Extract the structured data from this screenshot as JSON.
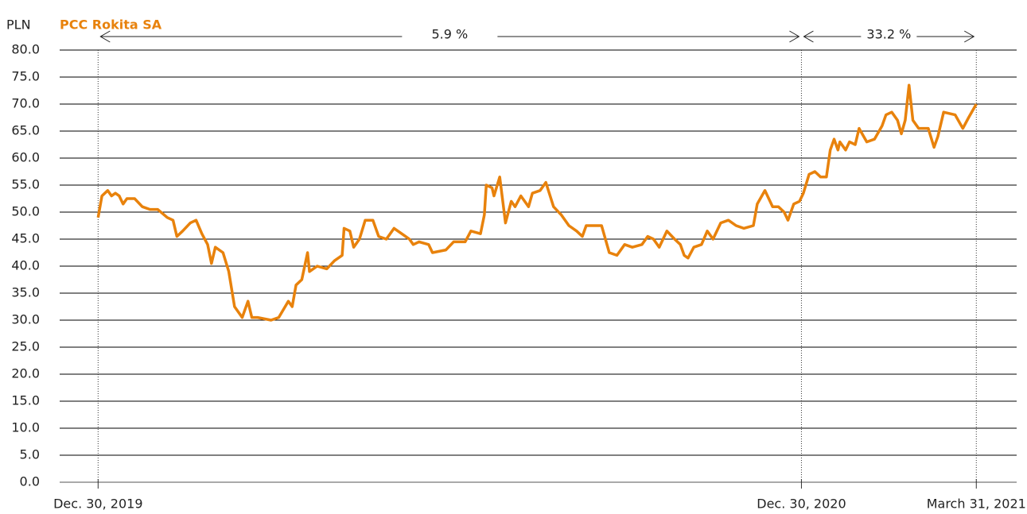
{
  "chart_data": {
    "type": "line",
    "title": "PCC Rokita SA",
    "y_label": "PLN",
    "annotations": [
      "5.9 %",
      "33.2 %"
    ],
    "xlim": [
      -20,
      478
    ],
    "xticks": [
      {
        "value": 0,
        "label": "Dec. 30, 2019"
      },
      {
        "value": 366,
        "label": "Dec. 30, 2020"
      },
      {
        "value": 457,
        "label": "March 31, 2021"
      }
    ],
    "ylim": [
      0,
      80
    ],
    "yticks": [
      {
        "value": 0,
        "label": "0.0"
      },
      {
        "value": 5,
        "label": "5.0"
      },
      {
        "value": 10,
        "label": "10.0"
      },
      {
        "value": 15,
        "label": "15.0"
      },
      {
        "value": 20,
        "label": "20.0"
      },
      {
        "value": 25,
        "label": "25.0"
      },
      {
        "value": 30,
        "label": "30.0"
      },
      {
        "value": 35,
        "label": "35.0"
      },
      {
        "value": 40,
        "label": "40.0"
      },
      {
        "value": 45,
        "label": "45.0"
      },
      {
        "value": 50,
        "label": "50.0"
      },
      {
        "value": 55,
        "label": "55.0"
      },
      {
        "value": 60,
        "label": "60.0"
      },
      {
        "value": 65,
        "label": "65.0"
      },
      {
        "value": 70,
        "label": "70.0"
      },
      {
        "value": 75,
        "label": "75.0"
      },
      {
        "value": 80,
        "label": "80.0"
      }
    ],
    "grid": true,
    "x": [
      0,
      2,
      5,
      7,
      9,
      11,
      13,
      15,
      19,
      23,
      27,
      31,
      36,
      39,
      41,
      44,
      48,
      51,
      54,
      57,
      59,
      61,
      65,
      68,
      71,
      75,
      78,
      80,
      83,
      90,
      94,
      99,
      101,
      103,
      106,
      109,
      110,
      114,
      119,
      123,
      127,
      128,
      131,
      133,
      136,
      139,
      143,
      146,
      150,
      154,
      158,
      162,
      164,
      167,
      172,
      174,
      181,
      185,
      191,
      194,
      199,
      201,
      202,
      205,
      206,
      209,
      212,
      215,
      217,
      220,
      224,
      226,
      230,
      233,
      237,
      241,
      245,
      249,
      252,
      254,
      262,
      264,
      266,
      270,
      274,
      278,
      283,
      286,
      289,
      292,
      296,
      300,
      303,
      305,
      307,
      310,
      314,
      317,
      320,
      324,
      328,
      332,
      336,
      341,
      343,
      347,
      351,
      354,
      357,
      359,
      362,
      365,
      367,
      370,
      373,
      376,
      379,
      381,
      383,
      385,
      386,
      389,
      391,
      394,
      396,
      400,
      404,
      408,
      410,
      413,
      416,
      418,
      420,
      422,
      424,
      427,
      432,
      435,
      437,
      440,
      446,
      450,
      453,
      457
    ],
    "series": [
      {
        "name": "PCC Rokita SA",
        "color": "#e8820c",
        "values": [
          49,
          53,
          54,
          53,
          53.5,
          53,
          51.5,
          52.5,
          52.5,
          51,
          50.5,
          50.5,
          49,
          48.5,
          45.5,
          46.5,
          48,
          48.5,
          46,
          44,
          40.5,
          43.5,
          42.5,
          39,
          32.5,
          30.5,
          33.5,
          30.5,
          30.5,
          30,
          30.5,
          33.5,
          32.5,
          36.5,
          37.5,
          42.5,
          39,
          40,
          39.5,
          41,
          42,
          47,
          46.5,
          43.5,
          45,
          48.5,
          48.5,
          45.5,
          45,
          47,
          46,
          45,
          44,
          44.5,
          44,
          42.5,
          43,
          44.5,
          44.5,
          46.5,
          46,
          49.5,
          55,
          54.5,
          53,
          56.5,
          48,
          52,
          51,
          53,
          51,
          53.5,
          54,
          55.5,
          51,
          49.5,
          47.5,
          46.5,
          45.5,
          47.5,
          47.5,
          45,
          42.5,
          42,
          44,
          43.5,
          44,
          45.5,
          45,
          43.5,
          46.5,
          45,
          44,
          42,
          41.5,
          43.5,
          44,
          46.5,
          45,
          48,
          48.5,
          47.5,
          47,
          47.5,
          51.5,
          54,
          51,
          51,
          50,
          48.5,
          51.5,
          52,
          53.5,
          57,
          57.5,
          56.5,
          56.5,
          61.5,
          63.5,
          61.5,
          63,
          61.5,
          63,
          62.5,
          65.5,
          63,
          63.5,
          66,
          68,
          68.5,
          67,
          64.5,
          67,
          73.5,
          67,
          65.5,
          65.5,
          62,
          64,
          68.5,
          68,
          65.5,
          67.5,
          70
        ]
      }
    ]
  }
}
